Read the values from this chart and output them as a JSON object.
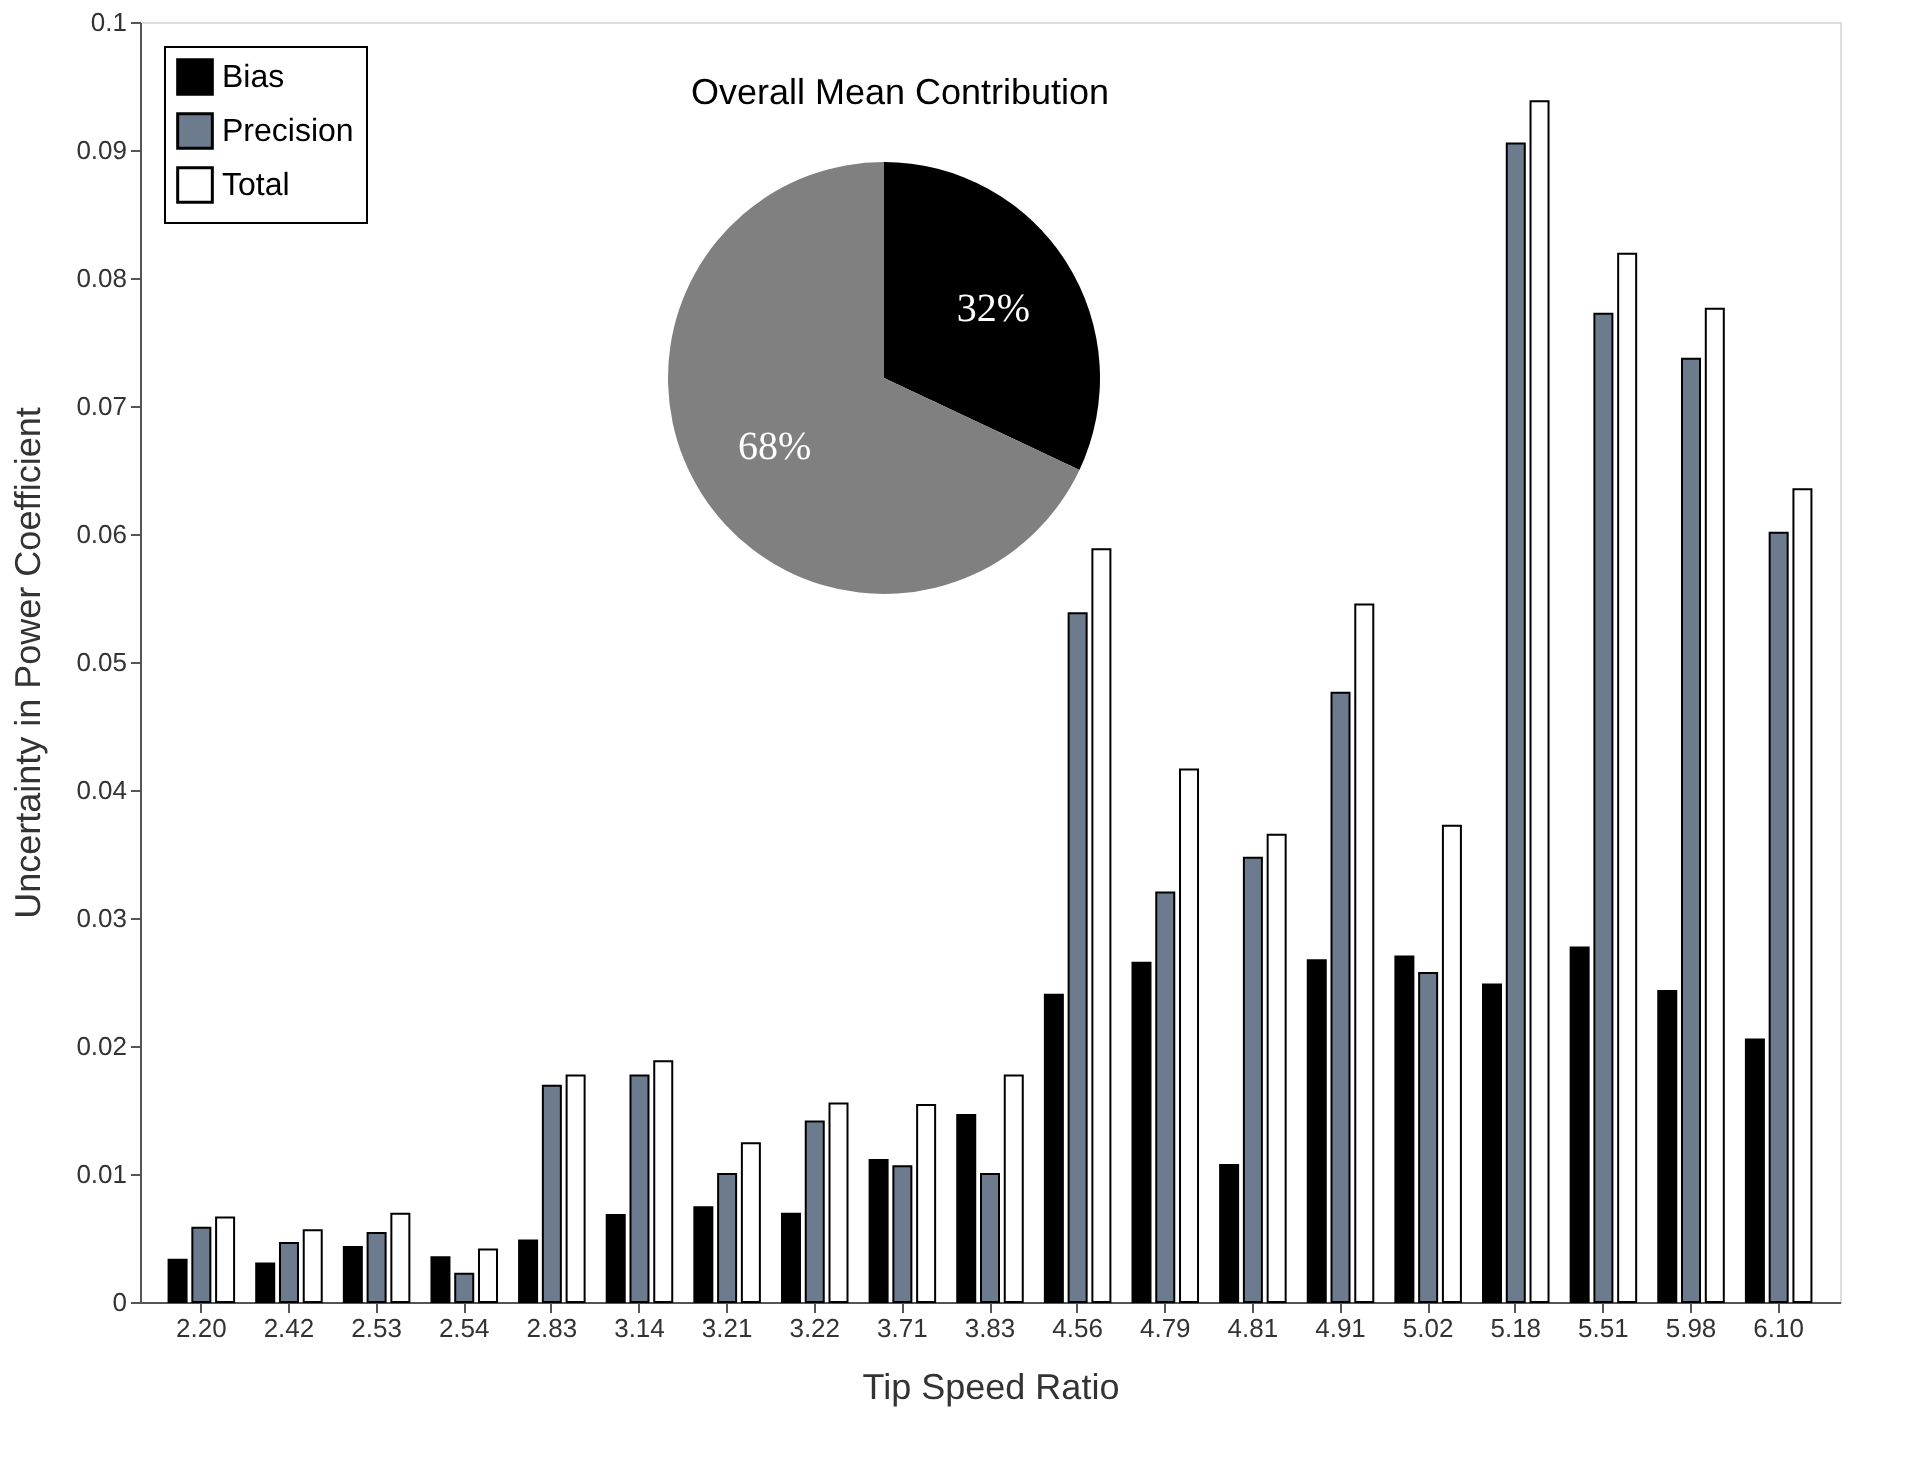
{
  "chart_data": [
    {
      "type": "bar",
      "xlabel": "Tip Speed Ratio",
      "ylabel": "Uncertainty in Power Coefficient",
      "categories": [
        "2.20",
        "2.42",
        "2.53",
        "2.54",
        "2.83",
        "3.14",
        "3.21",
        "3.22",
        "3.71",
        "3.83",
        "4.56",
        "4.79",
        "4.81",
        "4.91",
        "5.02",
        "5.18",
        "5.51",
        "5.98",
        "6.10"
      ],
      "series": [
        {
          "name": "Bias",
          "color": "#000000",
          "values": [
            0.0033,
            0.003,
            0.0043,
            0.0035,
            0.0048,
            0.0068,
            0.0074,
            0.0069,
            0.0111,
            0.0146,
            0.024,
            0.0265,
            0.0107,
            0.0267,
            0.027,
            0.0248,
            0.0277,
            0.0243,
            0.0205
          ]
        },
        {
          "name": "Precision",
          "color": "#6d7b8f",
          "values": [
            0.0058,
            0.0046,
            0.0054,
            0.0022,
            0.0169,
            0.0177,
            0.01,
            0.0141,
            0.0106,
            0.01,
            0.0538,
            0.032,
            0.0347,
            0.0476,
            0.0257,
            0.0905,
            0.0772,
            0.0737,
            0.0601
          ]
        },
        {
          "name": "Total",
          "color": "#ffffff",
          "values": [
            0.0066,
            0.0056,
            0.0069,
            0.0041,
            0.0177,
            0.0188,
            0.0124,
            0.0155,
            0.0154,
            0.0177,
            0.0588,
            0.0416,
            0.0365,
            0.0545,
            0.0372,
            0.0938,
            0.0819,
            0.0776,
            0.0635
          ]
        }
      ],
      "ylim": [
        0,
        0.1
      ],
      "yticks": [
        {
          "value": 0,
          "label": "0"
        },
        0.01,
        0.02,
        0.03,
        0.04,
        0.05,
        0.06,
        0.07,
        0.08,
        0.09,
        {
          "value": 0.1,
          "label": "0.1"
        }
      ],
      "legend": "top left",
      "grid": false
    },
    {
      "type": "pie",
      "title": "Overall Mean Contribution",
      "categories": [
        null,
        null
      ],
      "values": [
        32,
        68
      ],
      "colors": [
        "#000000",
        "#808080"
      ],
      "value_labels": [
        "32%",
        "68%"
      ]
    }
  ]
}
